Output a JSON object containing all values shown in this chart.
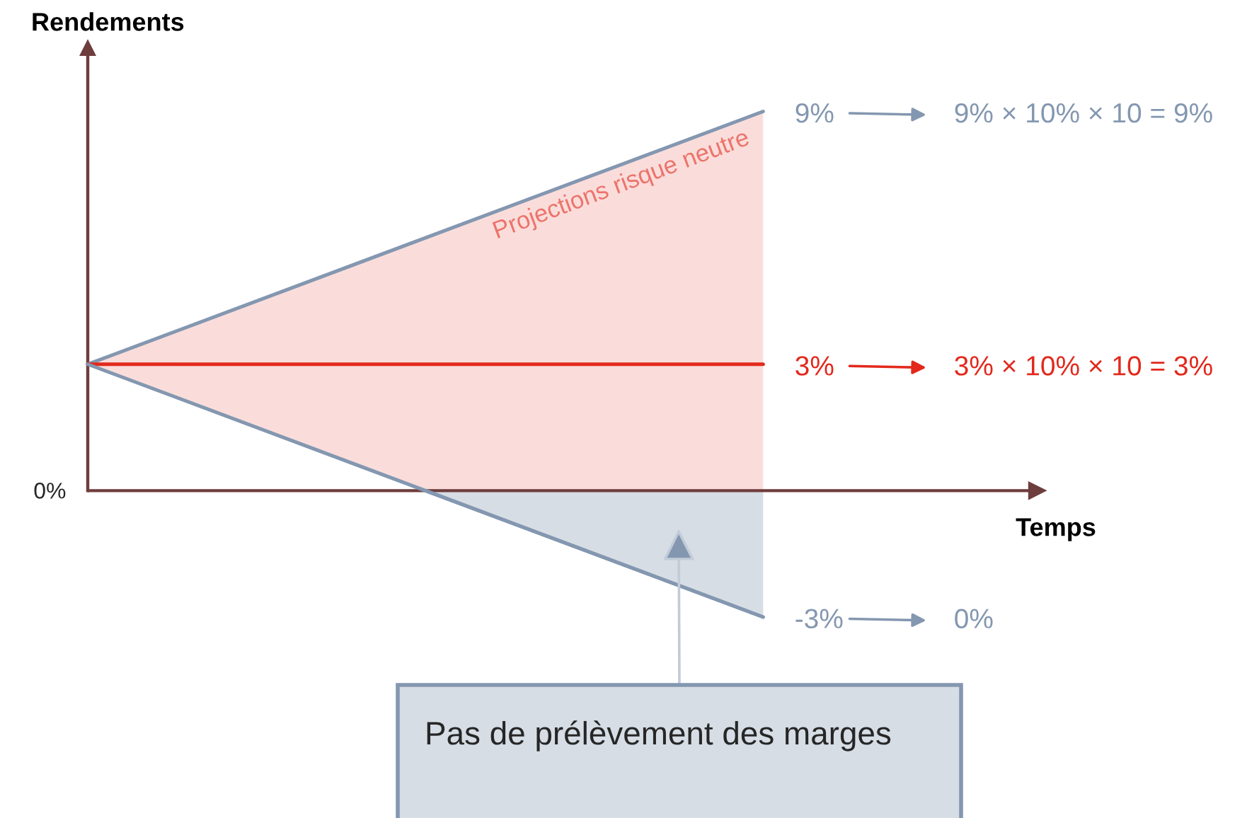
{
  "chart_data": {
    "type": "line",
    "xlabel": "Temps",
    "categories": [
      null,
      null,
      null
    ],
    "ref_lines": [
      {
        "axis": "y",
        "value": 0,
        "color": "#6e3d3d"
      }
    ],
    "series": [
      {
        "color": "#8497b0",
        "values": [
          3,
          6,
          9
        ],
        "value_labels": [
          null,
          null,
          "9%"
        ]
      },
      {
        "color": "#e2291c",
        "values": [
          3,
          3,
          3
        ],
        "value_labels": [
          null,
          null,
          "3%"
        ],
        "lower": [
          3,
          0,
          0
        ],
        "upper": [
          3,
          6,
          9
        ]
      },
      {
        "color": "#8497b0",
        "values": [
          3,
          0,
          -3
        ],
        "value_labels": [
          null,
          null,
          "-3%"
        ]
      },
      {
        "type": "area",
        "color": "#8497b0",
        "values": [
          null,
          0,
          -3
        ]
      }
    ],
    "annotations": [
      "Rendements",
      "Projections risque neutre",
      "9% × 10% × 10 = 9%",
      "3% × 10% × 10 = 3%",
      "0%",
      "0%",
      "Pas de prélèvement des marges"
    ]
  }
}
